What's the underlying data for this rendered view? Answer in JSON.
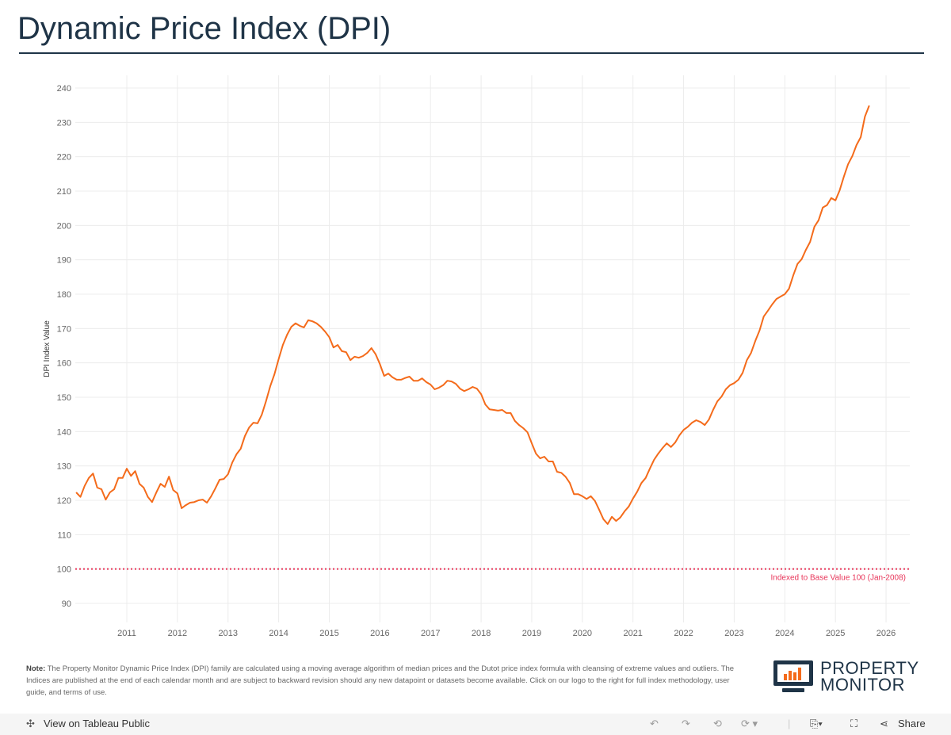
{
  "header": {
    "title": "Dynamic Price Index (DPI)"
  },
  "chart_data": {
    "type": "line",
    "title": "",
    "ylabel": "DPI Index Value",
    "xlabel": "",
    "ylim": [
      85,
      243
    ],
    "xlim": [
      "2010-01",
      "2026-06"
    ],
    "yticks": [
      90,
      100,
      110,
      120,
      130,
      140,
      150,
      160,
      170,
      180,
      190,
      200,
      210,
      220,
      230,
      240
    ],
    "xticks": [
      "2011",
      "2012",
      "2013",
      "2014",
      "2015",
      "2016",
      "2017",
      "2018",
      "2019",
      "2020",
      "2021",
      "2022",
      "2023",
      "2024",
      "2025",
      "2026"
    ],
    "grid": true,
    "line_color": "#f46b1b",
    "start": "2010-01",
    "frequency": "monthly",
    "series": [
      {
        "values": [
          122.3,
          121,
          124.2,
          126.5,
          127.8,
          123.7,
          123.2,
          120.2,
          122.3,
          123.2,
          126.5,
          126.5,
          129.2,
          127.1,
          128.5,
          124.8,
          123.7,
          121,
          119.5,
          122.3,
          124.8,
          123.9,
          126.9,
          123,
          122,
          117.7,
          118.6,
          119.3,
          119.5,
          120,
          120.2,
          119.3,
          121.2,
          123.5,
          126,
          126.2,
          127.6,
          131,
          133.4,
          135,
          138.7,
          141.2,
          142.6,
          142.4,
          144.9,
          148.8,
          153.2,
          156.7,
          161.1,
          165.2,
          168.2,
          170.5,
          171.5,
          170.8,
          170.3,
          172.4,
          172.1,
          171.5,
          170.5,
          169.1,
          167.5,
          164.5,
          165.2,
          163.4,
          163.1,
          160.8,
          161.8,
          161.5,
          162,
          162.9,
          164.3,
          162.5,
          159.7,
          156.2,
          156.9,
          155.8,
          155.1,
          155.1,
          155.6,
          156,
          154.8,
          154.8,
          155.5,
          154.4,
          153.7,
          152.3,
          152.8,
          153.5,
          154.8,
          154.6,
          153.9,
          152.5,
          151.8,
          152.3,
          153,
          152.5,
          150.9,
          147.9,
          146.5,
          146.3,
          146.1,
          146.3,
          145.4,
          145.4,
          143.1,
          141.9,
          141,
          139.8,
          136.6,
          133.6,
          132.2,
          132.7,
          131.3,
          131.3,
          128.3,
          128,
          126.9,
          125.1,
          121.8,
          121.8,
          121.2,
          120.4,
          121.2,
          119.8,
          117.2,
          114.5,
          113.1,
          115.2,
          114,
          115,
          116.8,
          118.2,
          120.5,
          122.5,
          125,
          126.5,
          129.2,
          131.8,
          133.6,
          135.2,
          136.6,
          135.5,
          136.8,
          138.9,
          140.5,
          141.4,
          142.6,
          143.3,
          142.8,
          141.9,
          143.5,
          146.3,
          148.8,
          150.2,
          152.3,
          153.5,
          154.1,
          155.1,
          157.1,
          160.8,
          162.9,
          166.4,
          169.4,
          173.5,
          175.2,
          177,
          178.6,
          179.3,
          180,
          181.6,
          185.5,
          188.8,
          190.2,
          192.9,
          195.2,
          199.6,
          201.5,
          205.2,
          205.9,
          208,
          207.3,
          210.2,
          214.2,
          217.8,
          220.2,
          223.4,
          225.7,
          231.7,
          234.9
        ]
      }
    ],
    "reference_line": {
      "value": 100,
      "label": "Indexed to Base Value 100 (Jan-2008)",
      "color": "#e8365a",
      "style": "dotted"
    }
  },
  "note": {
    "label": "Note:",
    "text": " The Property Monitor Dynamic Price Index (DPI) family are calculated using a moving average algorithm of median prices and the Dutot price index formula with cleansing of extreme values and outliers. The Indices are published at the end of each calendar month and are subject to backward revision should any new datapoint or datasets become available.  Click on our logo to the right for full index methodology, user guide, and terms of use."
  },
  "logo": {
    "line1": "PROPERTY",
    "line2": "MONITOR"
  },
  "toolbar": {
    "view_label": "View on Tableau Public",
    "share_label": "Share"
  }
}
